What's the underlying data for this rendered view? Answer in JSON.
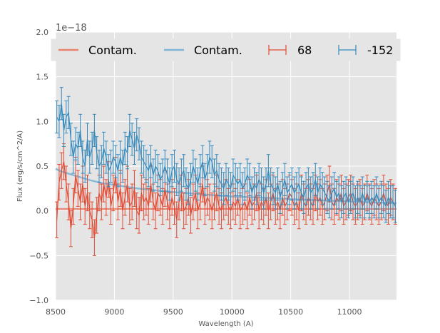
{
  "chart_data": {
    "type": "line",
    "xlabel": "Wavelength (A)",
    "ylabel": "Flux (erg/s/cm^2/A)",
    "y_offset_label": "1e−18",
    "xlim": [
      8500,
      11400
    ],
    "ylim": [
      -1.0,
      2.0
    ],
    "x_ticks": [
      8500,
      9000,
      9500,
      10000,
      10500,
      11000
    ],
    "x_tick_labels": [
      "8500",
      "9000",
      "9500",
      "10000",
      "10500",
      "11000"
    ],
    "y_ticks": [
      -1.0,
      -0.5,
      0.0,
      0.5,
      1.0,
      1.5,
      2.0
    ],
    "y_tick_labels": [
      "−1.0",
      "−0.5",
      "0.0",
      "0.5",
      "1.0",
      "1.5",
      "2.0"
    ],
    "grid": true,
    "legend": {
      "placement": "top",
      "entries": [
        {
          "label": "Contam.",
          "kind": "line",
          "color": "#E8836E"
        },
        {
          "label": "Contam.",
          "kind": "line",
          "color": "#7EB4D6"
        },
        {
          "label": "68",
          "kind": "errorbar",
          "color": "#E24A33"
        },
        {
          "label": "-152",
          "kind": "errorbar",
          "color": "#348ABD"
        }
      ]
    },
    "series": [
      {
        "name": "Contam. (68)",
        "kind": "line",
        "color": "#E8836E",
        "x": [
          8500,
          11400
        ],
        "y": [
          0.02,
          0.02
        ]
      },
      {
        "name": "Contam. (-152)",
        "kind": "line",
        "color": "#7EB4D6",
        "x": [
          8500,
          8550,
          8600,
          8700,
          8800,
          8900,
          9000,
          9100,
          9200,
          9300,
          9400,
          9500,
          9600,
          9700,
          9800,
          9900,
          10000,
          10100,
          10200,
          10300,
          10400,
          10500,
          10600,
          10700,
          10800,
          10900,
          11000,
          11100,
          11200,
          11300,
          11400
        ],
        "y": [
          0.47,
          0.44,
          0.42,
          0.38,
          0.34,
          0.31,
          0.29,
          0.27,
          0.25,
          0.24,
          0.22,
          0.21,
          0.2,
          0.19,
          0.18,
          0.17,
          0.16,
          0.155,
          0.15,
          0.145,
          0.14,
          0.13,
          0.125,
          0.12,
          0.115,
          0.11,
          0.105,
          0.1,
          0.095,
          0.09,
          0.085
        ]
      },
      {
        "name": "68",
        "kind": "errorbar",
        "color": "#E24A33",
        "x_start": 8510,
        "x_step": 20,
        "values": [
          -0.1,
          0.32,
          0.45,
          0.55,
          0.3,
          0.1,
          -0.2,
          0.05,
          0.4,
          0.25,
          0.1,
          0.3,
          0.05,
          0.2,
          0.0,
          -0.1,
          -0.3,
          -0.05,
          0.2,
          0.1,
          0.3,
          0.15,
          0.35,
          0.05,
          0.2,
          0.4,
          0.1,
          0.25,
          0.0,
          0.15,
          0.3,
          0.05,
          0.1,
          0.25,
          0.0,
          -0.05,
          0.2,
          0.1,
          0.15,
          0.05,
          0.3,
          0.1,
          0.0,
          0.2,
          0.15,
          0.05,
          0.25,
          0.1,
          0.0,
          0.15,
          0.05,
          -0.1,
          0.1,
          0.2,
          0.0,
          0.05,
          0.15,
          -0.05,
          0.1,
          0.2,
          0.0,
          0.1,
          0.3,
          0.05,
          0.15,
          0.1,
          0.0,
          0.1,
          0.2,
          0.05,
          0.0,
          0.1,
          0.15,
          0.05,
          0.0,
          0.1,
          0.05,
          0.15,
          0.0,
          0.05,
          0.1,
          0.0,
          0.15,
          0.05,
          0.1,
          0.2,
          0.0,
          0.1,
          0.05,
          0.15,
          0.0,
          0.1,
          0.2,
          0.05,
          0.1,
          0.0,
          0.15,
          0.05,
          0.1,
          0.2,
          0.15,
          0.05,
          0.1,
          0.0,
          0.2,
          0.1,
          0.05,
          0.15,
          0.1,
          0.05,
          0.2,
          0.1,
          0.15,
          0.05,
          0.1,
          0.2,
          0.3,
          0.1,
          0.05,
          0.15,
          0.1,
          0.2,
          0.05,
          0.1,
          0.15,
          0.2,
          0.1,
          0.05,
          0.1,
          0.15,
          0.05,
          0.1,
          0.2,
          0.1,
          0.05,
          0.15,
          0.1,
          0.05,
          0.1,
          0.2,
          0.1,
          0.05,
          0.15,
          0.1,
          0.05
        ],
        "error": 0.2
      },
      {
        "name": "-152",
        "kind": "errorbar",
        "color": "#348ABD",
        "x_start": 8510,
        "x_step": 20,
        "values": [
          1.05,
          1.0,
          1.2,
          0.9,
          1.05,
          1.1,
          0.8,
          0.6,
          0.75,
          0.7,
          0.9,
          0.6,
          0.5,
          0.8,
          0.6,
          0.7,
          0.9,
          0.65,
          0.5,
          0.55,
          0.7,
          0.6,
          0.45,
          0.5,
          0.6,
          0.55,
          0.45,
          0.6,
          0.5,
          0.7,
          0.65,
          0.9,
          0.8,
          0.7,
          0.85,
          0.75,
          0.6,
          0.55,
          0.5,
          0.45,
          0.55,
          0.4,
          0.5,
          0.45,
          0.35,
          0.4,
          0.5,
          0.4,
          0.3,
          0.45,
          0.5,
          0.35,
          0.3,
          0.4,
          0.45,
          0.3,
          0.25,
          0.35,
          0.5,
          0.4,
          0.3,
          0.45,
          0.55,
          0.35,
          0.45,
          0.6,
          0.55,
          0.4,
          0.45,
          0.35,
          0.3,
          0.25,
          0.35,
          0.3,
          0.25,
          0.4,
          0.35,
          0.3,
          0.35,
          0.25,
          0.3,
          0.4,
          0.35,
          0.2,
          0.3,
          0.25,
          0.35,
          0.3,
          0.2,
          0.3,
          0.45,
          0.3,
          0.25,
          0.2,
          0.3,
          0.15,
          0.25,
          0.35,
          0.2,
          0.25,
          0.3,
          0.2,
          0.25,
          0.3,
          0.2,
          0.15,
          0.25,
          0.3,
          0.2,
          0.25,
          0.35,
          0.2,
          0.3,
          0.25,
          0.2,
          0.15,
          0.1,
          0.2,
          0.25,
          0.15,
          0.2,
          0.1,
          0.15,
          0.2,
          0.1,
          0.15,
          0.2,
          0.1,
          0.15,
          0.1,
          0.2,
          0.1,
          0.15,
          0.1,
          0.15,
          0.1,
          0.2,
          0.1,
          0.15,
          0.1,
          0.05,
          0.15,
          0.1,
          0.1,
          0.05
        ],
        "error": 0.18
      }
    ]
  }
}
